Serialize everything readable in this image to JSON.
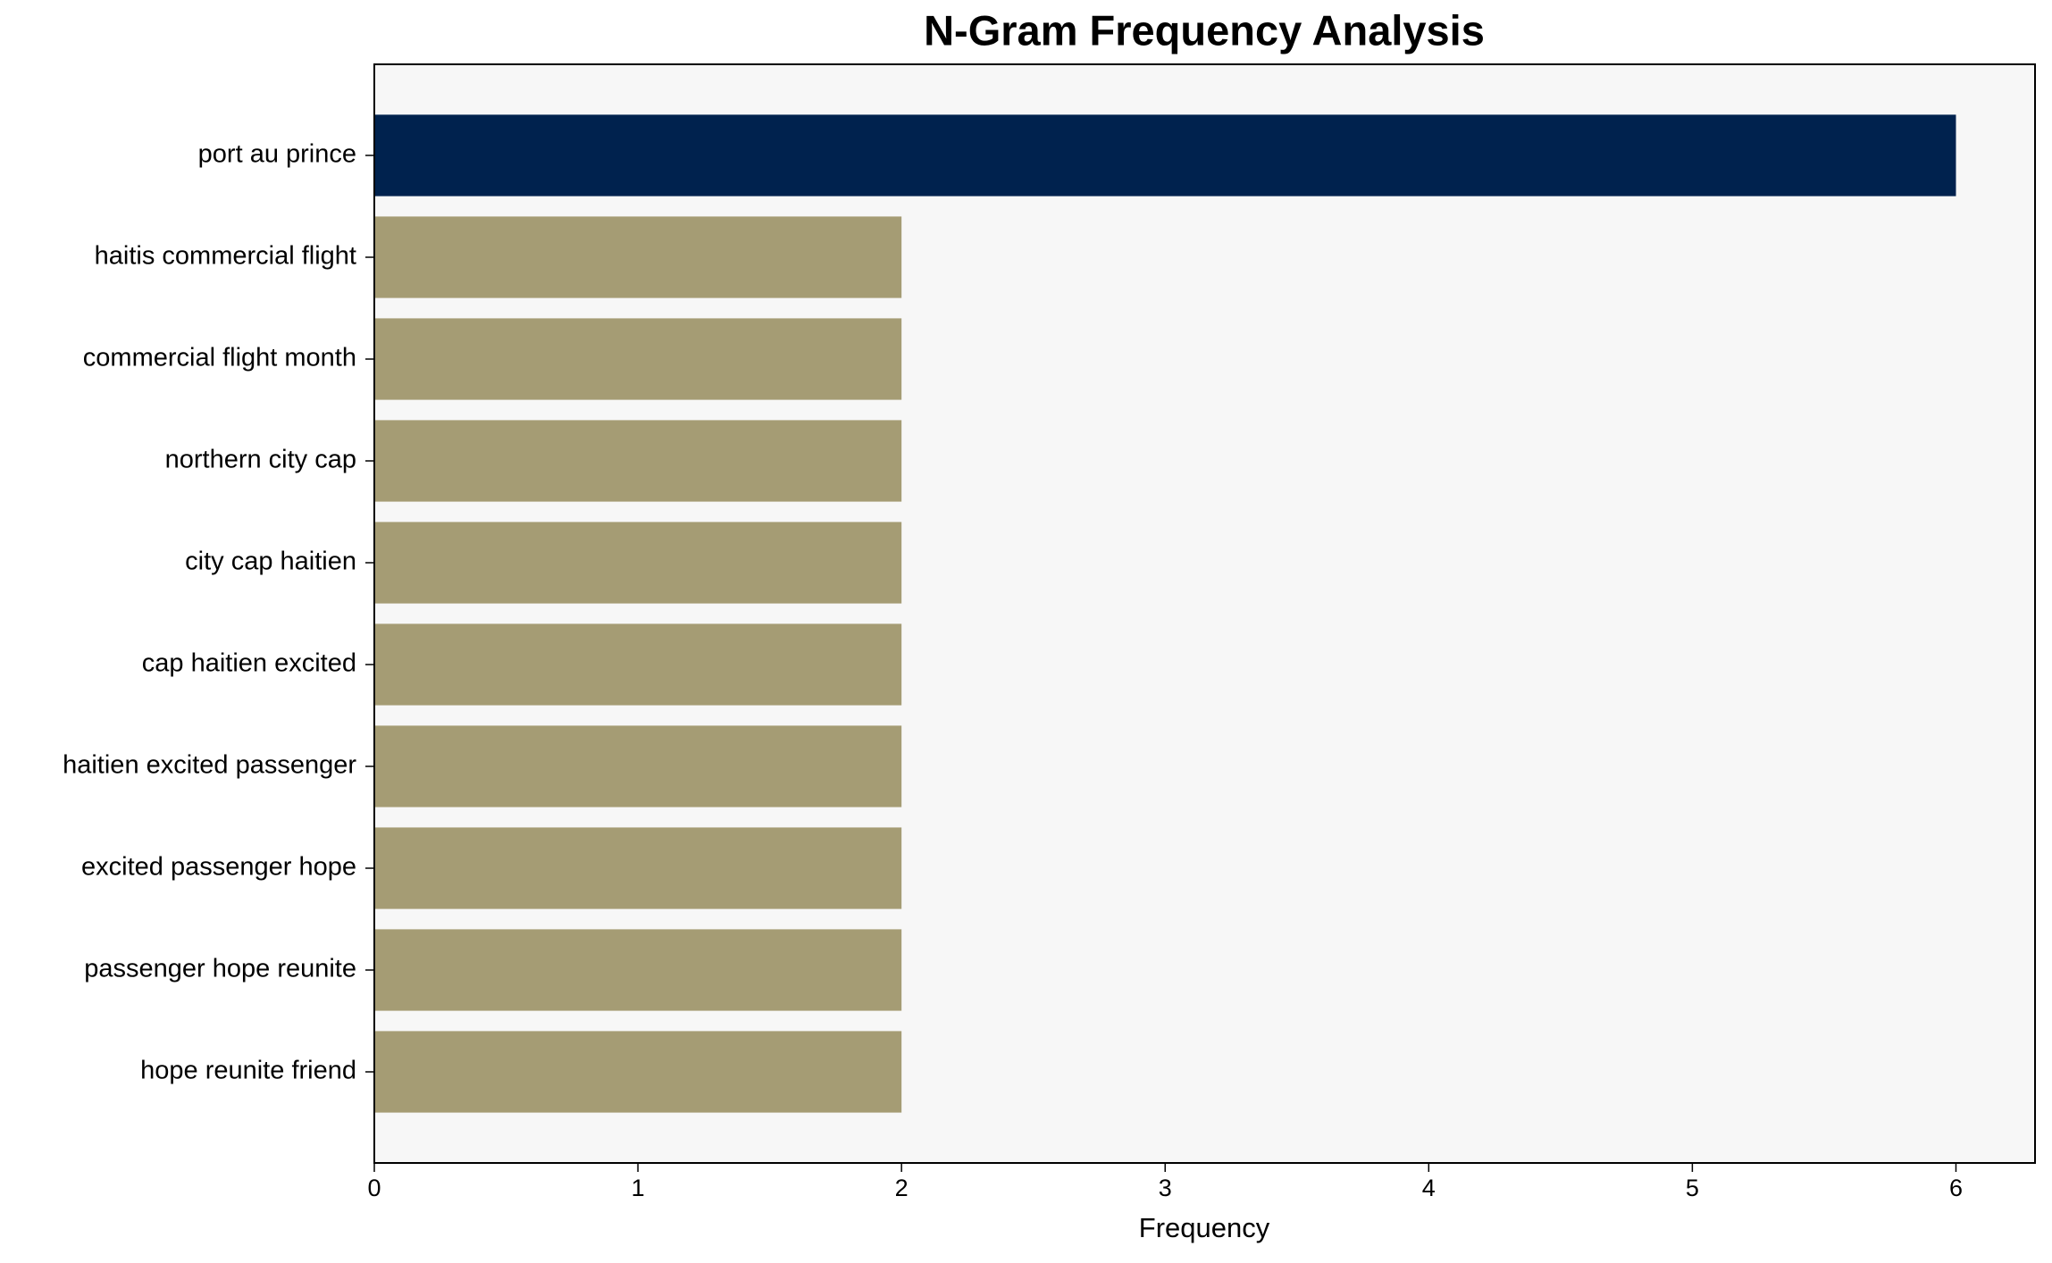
{
  "chart_data": {
    "type": "barh",
    "title": "N-Gram Frequency Analysis",
    "xlabel": "Frequency",
    "categories": [
      "port au prince",
      "haitis commercial flight",
      "commercial flight month",
      "northern city cap",
      "city cap haitien",
      "cap haitien excited",
      "haitien excited passenger",
      "excited passenger hope",
      "passenger hope reunite",
      "hope reunite friend"
    ],
    "values": [
      6,
      2,
      2,
      2,
      2,
      2,
      2,
      2,
      2,
      2
    ],
    "colors": [
      "#00224e",
      "#a59c74",
      "#a59c74",
      "#a59c74",
      "#a59c74",
      "#a59c74",
      "#a59c74",
      "#a59c74",
      "#a59c74",
      "#a59c74"
    ],
    "xlim": [
      0,
      6.3
    ],
    "xticks": [
      0,
      1,
      2,
      3,
      4,
      5,
      6
    ],
    "grid": false
  }
}
